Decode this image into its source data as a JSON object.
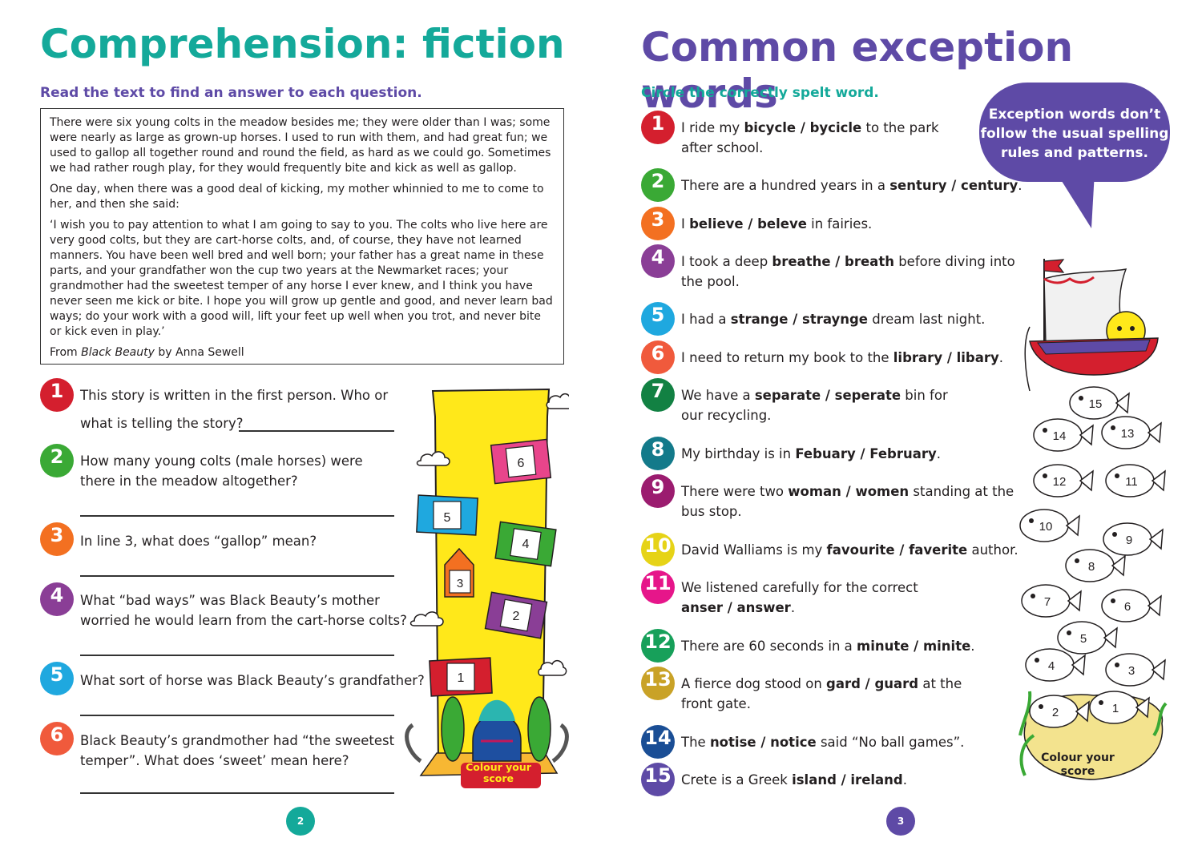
{
  "left": {
    "title": "Comprehension: fiction",
    "instruction": "Read the text to find an answer to each question.",
    "passage": {
      "p1": "There were six young colts in the meadow besides me; they were older than I was; some were nearly as large as grown-up horses. I used to run with them, and had great fun; we used to gallop all together round and round the field, as hard as we could go. Sometimes we had rather rough play, for they would frequently bite and kick as well as gallop.",
      "p2": "One day, when there was a good deal of kicking, my mother whinnied to me to come to her, and then she said:",
      "p3": "‘I wish you to pay attention to what I am going to say to you. The colts who live here are very good colts, but they are cart-horse colts, and, of course, they have not learned manners. You have been well bred and well born; your father has a great name in these parts, and your grandfather won the cup two years at the Newmarket races; your grandmother had the sweetest temper of any horse I ever knew, and I think you have never seen me kick or bite. I hope you will grow up gentle and good, and never learn bad ways; do your work with a good will, lift your feet up well when you trot, and never bite or kick even in play.’",
      "source_prefix": "From ",
      "source_title": "Black Beauty",
      "source_suffix": " by Anna Sewell"
    },
    "questions": [
      {
        "n": "1",
        "a": "This story is written in the first person. Who or",
        "b": "what is telling the story?"
      },
      {
        "n": "2",
        "a": "How many young colts (male horses) were",
        "b": "there in the meadow altogether?"
      },
      {
        "n": "3",
        "a": "In line 3, what does “gallop” mean?",
        "b": ""
      },
      {
        "n": "4",
        "a": "What “bad ways” was Black Beauty’s mother",
        "b": "worried he would learn from the cart-horse colts?"
      },
      {
        "n": "5",
        "a": "What sort of horse was Black Beauty’s grandfather?",
        "b": ""
      },
      {
        "n": "6",
        "a": "Black Beauty’s grandmother had “the sweetest",
        "b": "temper”. What does ‘sweet’ mean here?"
      }
    ],
    "score_label": "Colour your score",
    "score_numbers": [
      "6",
      "5",
      "4",
      "3",
      "2",
      "1"
    ],
    "page_number": "2"
  },
  "right": {
    "title": "Common exception words",
    "instruction": "Circle the correctly spelt word.",
    "bubble_text": "Exception words don’t follow the usual spelling rules and patterns.",
    "items": [
      {
        "n": "1",
        "pre": "I ride my ",
        "w1": "bicycle",
        "w2": "bycicle",
        "post": " to the park",
        "line2": "after school."
      },
      {
        "n": "2",
        "pre": "There are a hundred years in a ",
        "w1": "sentury",
        "w2": "century",
        "post": ".",
        "line2": ""
      },
      {
        "n": "3",
        "pre": "I ",
        "w1": "believe",
        "w2": "beleve",
        "post": " in fairies.",
        "line2": ""
      },
      {
        "n": "4",
        "pre": "I took a deep ",
        "w1": "breathe",
        "w2": "breath",
        "post": " before diving into",
        "line2": "the pool."
      },
      {
        "n": "5",
        "pre": "I had a ",
        "w1": "strange",
        "w2": "straynge",
        "post": " dream last night.",
        "line2": ""
      },
      {
        "n": "6",
        "pre": "I need to return my book to the ",
        "w1": "library",
        "w2": "libary",
        "post": ".",
        "line2": ""
      },
      {
        "n": "7",
        "pre": "We have a ",
        "w1": "separate",
        "w2": "seperate",
        "post": " bin for",
        "line2": "our recycling."
      },
      {
        "n": "8",
        "pre": "My birthday is in ",
        "w1": "Febuary",
        "w2": "February",
        "post": ".",
        "line2": ""
      },
      {
        "n": "9",
        "pre": "There were two ",
        "w1": "woman",
        "w2": "women",
        "post": " standing at the",
        "line2": "bus stop."
      },
      {
        "n": "10",
        "pre": "David Walliams is my ",
        "w1": "favourite",
        "w2": "faverite",
        "post": " author.",
        "line2": ""
      },
      {
        "n": "11",
        "pre": "We listened carefully for the correct",
        "w1": "",
        "w2": "",
        "post": "",
        "line2": "",
        "l2w1": "anser",
        "l2w2": "answer",
        "l2post": "."
      },
      {
        "n": "12",
        "pre": "There are 60 seconds in a ",
        "w1": "minute",
        "w2": "minite",
        "post": ".",
        "line2": ""
      },
      {
        "n": "13",
        "pre": "A fierce dog stood on ",
        "w1": "gard",
        "w2": "guard",
        "post": " at the",
        "line2": "front gate."
      },
      {
        "n": "14",
        "pre": "The ",
        "w1": "notise",
        "w2": "notice",
        "post": " said “No ball games”.",
        "line2": ""
      },
      {
        "n": "15",
        "pre": "Crete is a Greek ",
        "w1": "island",
        "w2": "ireland",
        "post": ".",
        "line2": ""
      }
    ],
    "score_label": "Colour your score",
    "fish_numbers": [
      "15",
      "14",
      "13",
      "12",
      "11",
      "10",
      "9",
      "8",
      "7",
      "6",
      "5",
      "4",
      "3",
      "2",
      "1"
    ],
    "page_number": "3"
  },
  "colors": {
    "teal": "#14a99a",
    "purple": "#5e4aa6",
    "red": "#d41f2e",
    "green": "#3aa935",
    "orange": "#f37021",
    "violet": "#8a3e96",
    "cyan": "#1fa8df",
    "coral": "#f05a3c",
    "darkgreen": "#128143",
    "petrol": "#137a8a",
    "magenta": "#9b1c6f",
    "yellow": "#e6d317",
    "pink": "#e6168a",
    "emerald": "#17a05a",
    "gold": "#c9a227",
    "navy": "#1a4e95",
    "indigo": "#5e4aa6"
  }
}
